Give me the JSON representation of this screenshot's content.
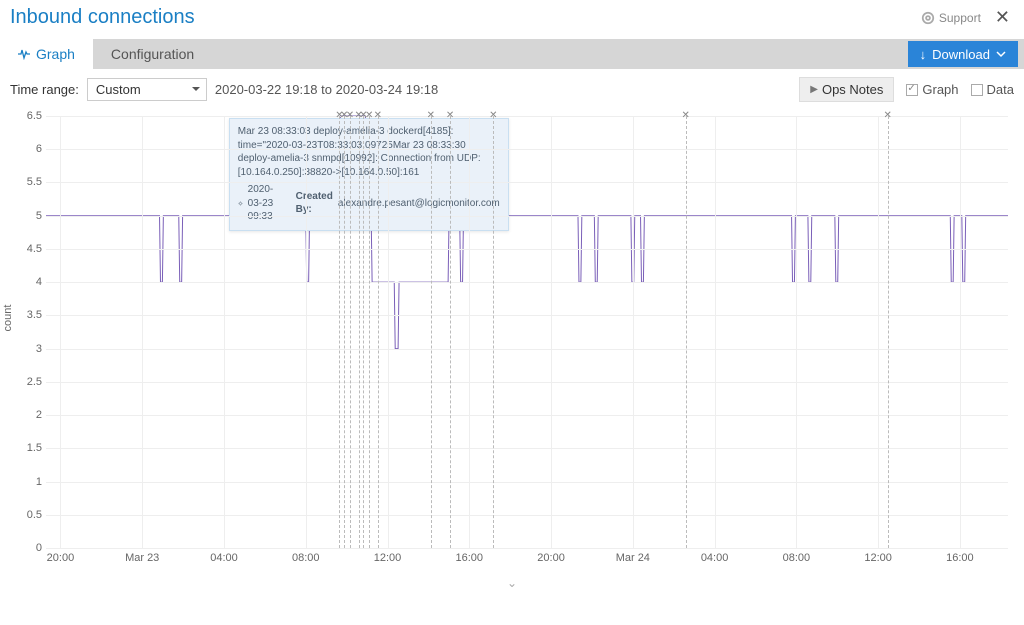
{
  "header": {
    "title": "Inbound connections",
    "support_label": "Support"
  },
  "tabs": {
    "graph": "Graph",
    "configuration": "Configuration",
    "download": "Download"
  },
  "controls": {
    "time_range_label": "Time range:",
    "time_range_value": "Custom",
    "range_text": "2020-03-22 19:18 to 2020-03-24 19:18",
    "ops_notes": "Ops Notes",
    "graph_toggle": "Graph",
    "data_toggle": "Data"
  },
  "chart": {
    "type": "line",
    "y_axis_title": "count",
    "ylim": [
      0,
      6.5
    ],
    "ytick_step": 0.5,
    "y_ticks": [
      0,
      0.5,
      1,
      1.5,
      2,
      2.5,
      3,
      3.5,
      4,
      4.5,
      5,
      5.5,
      6,
      6.5
    ],
    "x_ticks": [
      {
        "pos": 0.015,
        "label": "20:00"
      },
      {
        "pos": 0.1,
        "label": "Mar 23"
      },
      {
        "pos": 0.185,
        "label": "04:00"
      },
      {
        "pos": 0.27,
        "label": "08:00"
      },
      {
        "pos": 0.355,
        "label": "12:00"
      },
      {
        "pos": 0.44,
        "label": "16:00"
      },
      {
        "pos": 0.525,
        "label": "20:00"
      },
      {
        "pos": 0.61,
        "label": "Mar 24"
      },
      {
        "pos": 0.695,
        "label": "04:00"
      },
      {
        "pos": 0.78,
        "label": "08:00"
      },
      {
        "pos": 0.865,
        "label": "12:00"
      },
      {
        "pos": 0.95,
        "label": "16:00"
      }
    ],
    "series_color": "#7a5fb8",
    "grid_color": "#eeeeee",
    "background_color": "#ffffff",
    "ops_markers_x": [
      0.305,
      0.31,
      0.316,
      0.325,
      0.33,
      0.336,
      0.345,
      0.4,
      0.42,
      0.465,
      0.665,
      0.875
    ],
    "ops_dashed_x": [
      0.305,
      0.31,
      0.316,
      0.325,
      0.33,
      0.336,
      0.345,
      0.4,
      0.42,
      0.465,
      0.665,
      0.875
    ],
    "data": [
      [
        0.0,
        5
      ],
      [
        0.118,
        5
      ],
      [
        0.119,
        4
      ],
      [
        0.121,
        4
      ],
      [
        0.122,
        5
      ],
      [
        0.138,
        5
      ],
      [
        0.139,
        4
      ],
      [
        0.141,
        4
      ],
      [
        0.142,
        5
      ],
      [
        0.27,
        5
      ],
      [
        0.271,
        4
      ],
      [
        0.273,
        4
      ],
      [
        0.274,
        5
      ],
      [
        0.305,
        5
      ],
      [
        0.306,
        6.5
      ],
      [
        0.332,
        6.5
      ],
      [
        0.333,
        5
      ],
      [
        0.338,
        5
      ],
      [
        0.339,
        4
      ],
      [
        0.362,
        4
      ],
      [
        0.363,
        3
      ],
      [
        0.366,
        3
      ],
      [
        0.367,
        4
      ],
      [
        0.418,
        4
      ],
      [
        0.419,
        5
      ],
      [
        0.43,
        5
      ],
      [
        0.431,
        4
      ],
      [
        0.433,
        4
      ],
      [
        0.434,
        5
      ],
      [
        0.553,
        5
      ],
      [
        0.554,
        4
      ],
      [
        0.556,
        4
      ],
      [
        0.557,
        5
      ],
      [
        0.57,
        5
      ],
      [
        0.571,
        4
      ],
      [
        0.573,
        4
      ],
      [
        0.574,
        5
      ],
      [
        0.608,
        5
      ],
      [
        0.609,
        4
      ],
      [
        0.611,
        4
      ],
      [
        0.612,
        5
      ],
      [
        0.618,
        5
      ],
      [
        0.619,
        4
      ],
      [
        0.621,
        4
      ],
      [
        0.622,
        5
      ],
      [
        0.775,
        5
      ],
      [
        0.776,
        4
      ],
      [
        0.778,
        4
      ],
      [
        0.779,
        5
      ],
      [
        0.792,
        5
      ],
      [
        0.793,
        4
      ],
      [
        0.795,
        4
      ],
      [
        0.796,
        5
      ],
      [
        0.82,
        5
      ],
      [
        0.821,
        4
      ],
      [
        0.823,
        4
      ],
      [
        0.824,
        5
      ],
      [
        0.94,
        5
      ],
      [
        0.941,
        4
      ],
      [
        0.943,
        4
      ],
      [
        0.944,
        5
      ],
      [
        0.952,
        5
      ],
      [
        0.953,
        4
      ],
      [
        0.955,
        4
      ],
      [
        0.956,
        5
      ],
      [
        1.0,
        5
      ]
    ]
  },
  "tooltip": {
    "body": "Mar 23 08:33:03 deploy-amelia-3 dockerd[4185]: time=\"2020-03-23T08:33:03.09725Mar 23 08:33:30 deploy-amelia-3 snmpd[10992]: Connection from UDP: [10.164.0.250]:38820->[10.164.0.50]:161",
    "timestamp": "2020-03-23 09:33",
    "created_by_label": "Created By:",
    "created_by": "alexandre.pesant@logicmonitor.com"
  }
}
